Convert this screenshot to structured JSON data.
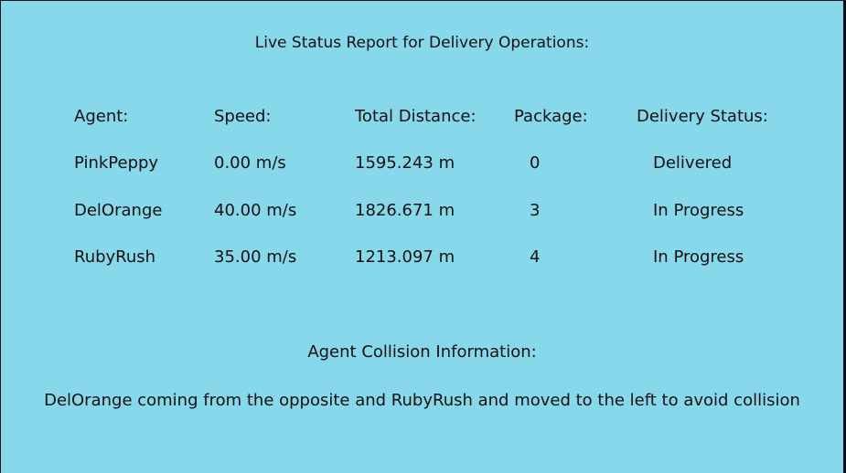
{
  "report": {
    "title": "Live Status Report for Delivery Operations:",
    "headers": {
      "agent": "Agent:",
      "speed": "Speed:",
      "distance": "Total Distance:",
      "package": "Package:",
      "status": "Delivery Status:"
    },
    "rows": [
      {
        "agent": "PinkPeppy",
        "speed": "0.00 m/s",
        "distance": "1595.243 m",
        "package": "0",
        "status": "Delivered"
      },
      {
        "agent": "DelOrange",
        "speed": "40.00 m/s",
        "distance": "1826.671 m",
        "package": "3",
        "status": "In Progress"
      },
      {
        "agent": "RubyRush",
        "speed": "35.00 m/s",
        "distance": "1213.097 m",
        "package": "4",
        "status": "In Progress"
      }
    ]
  },
  "collision": {
    "title": "Agent Collision Information:",
    "message": "DelOrange coming from the opposite and RubyRush and moved to the left to avoid collision"
  },
  "colors": {
    "panel_background": "#86d8ea",
    "frame_background": "#0a0e12",
    "text": "#111111"
  }
}
